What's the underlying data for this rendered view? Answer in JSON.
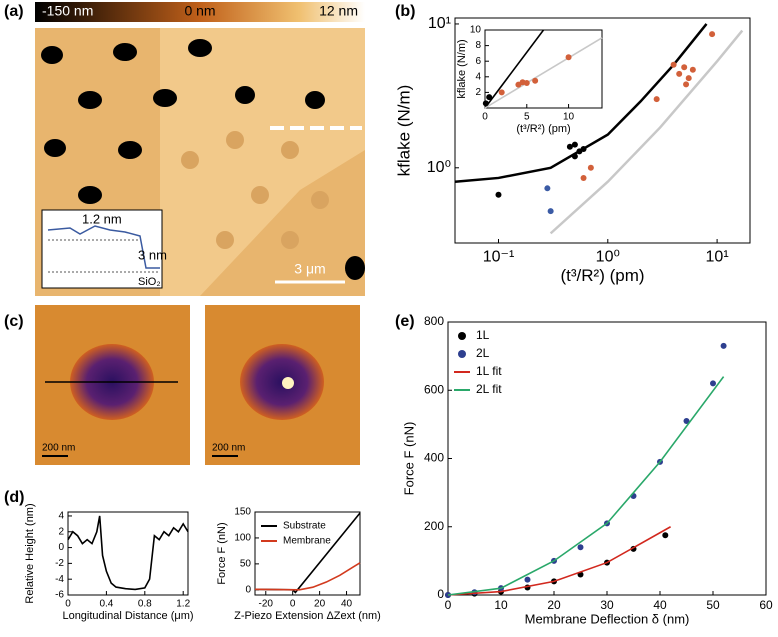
{
  "panel_labels": [
    "(a)",
    "(b)",
    "(c)",
    "(d)",
    "(e)"
  ],
  "image_a": {
    "colorbar_labels": [
      "-150 nm",
      "0 nm",
      "12 nm"
    ],
    "step_labels": [
      "1.2 nm",
      "3 nm",
      "SiO₂"
    ],
    "scale_bar": "3 μm"
  },
  "image_c": {
    "scale_bars": [
      "200 nm",
      "200 nm"
    ]
  },
  "chart_data": [
    {
      "type": "scatter",
      "xlabel": "(t³/R²) (pm)",
      "ylabel": "kflake (N/m)",
      "log_x": true,
      "log_y": true,
      "xlim": [
        0.04,
        20
      ],
      "ylim": [
        0.3,
        11
      ],
      "xticks": [
        {
          "value": 0.1,
          "label": "10⁻¹"
        },
        {
          "value": 1,
          "label": "10⁰"
        },
        {
          "value": 10,
          "label": "10¹"
        }
      ],
      "yticks": [
        {
          "value": 1,
          "label": "10⁰"
        },
        {
          "value": 10,
          "label": "10¹"
        }
      ],
      "series": [
        {
          "color": "#000000",
          "mode": "line",
          "x": [
            0.04,
            0.1,
            0.3,
            1,
            2,
            4,
            8
          ],
          "values": [
            0.8,
            0.85,
            1.0,
            1.7,
            2.9,
            5.2,
            10
          ]
        },
        {
          "color": "#c8c8c8",
          "mode": "line",
          "x": [
            0.3,
            1,
            3,
            10,
            17
          ],
          "values": [
            0.35,
            0.8,
            1.9,
            5.5,
            9
          ]
        },
        {
          "color": "#000000",
          "mode": "points",
          "x": [
            0.1,
            0.45,
            0.5,
            0.55,
            0.6,
            0.5
          ],
          "values": [
            0.65,
            1.4,
            1.45,
            1.3,
            1.35,
            1.2
          ]
        },
        {
          "color": "#3b5ba5",
          "mode": "points",
          "x": [
            0.28,
            0.3
          ],
          "values": [
            0.72,
            0.5
          ]
        },
        {
          "color": "#d2603a",
          "mode": "points",
          "x": [
            0.6,
            0.7,
            2.8,
            4,
            4.5,
            5,
            5.5,
            6,
            5.2,
            9
          ],
          "values": [
            0.85,
            1.0,
            3.0,
            5.2,
            4.5,
            5,
            4.2,
            4.8,
            3.8,
            8.5
          ]
        }
      ]
    },
    {
      "type": "scatter",
      "xlabel": "(t³/R²) (pm)",
      "ylabel": "kflake (N/m)",
      "xlim": [
        0,
        14
      ],
      "ylim": [
        0,
        10
      ],
      "xticks": [
        0,
        5,
        10
      ],
      "yticks": [
        2,
        4,
        6,
        8,
        10
      ],
      "series": [
        {
          "color": "#000000",
          "mode": "line",
          "x": [
            0,
            7
          ],
          "values": [
            0,
            10
          ]
        },
        {
          "color": "#c8c8c8",
          "mode": "line",
          "x": [
            0,
            14
          ],
          "values": [
            0,
            9
          ]
        },
        {
          "color": "#000000",
          "mode": "points",
          "x": [
            0.1,
            0.5
          ],
          "values": [
            0.6,
            1.4
          ]
        },
        {
          "color": "#d2603a",
          "mode": "points",
          "x": [
            2,
            4,
            4.5,
            5,
            6,
            10
          ],
          "values": [
            2,
            3,
            3.3,
            3.2,
            3.5,
            6.5
          ]
        }
      ]
    },
    {
      "type": "line",
      "xlabel": "Longitudinal Distance (μm)",
      "ylabel": "Relative Height (nm)",
      "xlim": [
        0,
        1.25
      ],
      "ylim": [
        -6,
        4.5
      ],
      "xticks": [
        0,
        0.4,
        0.8,
        1.2
      ],
      "yticks": [
        -6,
        -4,
        -2,
        0,
        2,
        4
      ],
      "series": [
        {
          "color": "#000000",
          "mode": "line",
          "x": [
            0,
            0.05,
            0.1,
            0.15,
            0.2,
            0.25,
            0.3,
            0.33,
            0.36,
            0.4,
            0.45,
            0.5,
            0.6,
            0.7,
            0.8,
            0.85,
            0.9,
            0.95,
            1.0,
            1.05,
            1.1,
            1.15,
            1.2,
            1.25
          ],
          "values": [
            1,
            2,
            1.5,
            0.5,
            1,
            0.5,
            2,
            4,
            -1,
            -3,
            -4.5,
            -5,
            -5.2,
            -5.3,
            -5.1,
            -4,
            1.5,
            1,
            2,
            1.5,
            2.5,
            2,
            3,
            2
          ]
        }
      ]
    },
    {
      "type": "line",
      "xlabel": "Z-Piezo Extension ΔZext (nm)",
      "ylabel": "Force F (nN)",
      "xlim": [
        -28,
        50
      ],
      "ylim": [
        -10,
        150
      ],
      "xticks": [
        -20,
        0,
        20,
        40
      ],
      "yticks": [
        0,
        50,
        100,
        150
      ],
      "legend": "top-left",
      "series": [
        {
          "name": "Substrate",
          "color": "#000000",
          "mode": "line",
          "x": [
            -28,
            0,
            2,
            50
          ],
          "values": [
            1,
            0,
            -5,
            148
          ]
        },
        {
          "name": "Membrane",
          "color": "#d23a1e",
          "mode": "line",
          "x": [
            -28,
            5,
            15,
            25,
            35,
            45,
            50
          ],
          "values": [
            1,
            0,
            5,
            15,
            28,
            44,
            52
          ]
        }
      ]
    },
    {
      "type": "line",
      "xlabel": "Membrane Deflection δ (nm)",
      "ylabel": "Force F (nN)",
      "xlim": [
        0,
        60
      ],
      "ylim": [
        0,
        800
      ],
      "xticks": [
        0,
        10,
        20,
        30,
        40,
        50,
        60
      ],
      "yticks": [
        0,
        200,
        400,
        600,
        800
      ],
      "legend": "top-left",
      "series": [
        {
          "name": "1L",
          "color": "#000000",
          "mode": "points",
          "x": [
            0,
            5,
            10,
            15,
            20,
            25,
            30,
            35,
            41
          ],
          "values": [
            0,
            4,
            10,
            22,
            40,
            60,
            95,
            135,
            175
          ]
        },
        {
          "name": "2L",
          "color": "#2e3f8f",
          "mode": "points",
          "x": [
            0,
            5,
            10,
            15,
            20,
            25,
            30,
            35,
            40,
            45,
            50,
            52
          ],
          "values": [
            0,
            8,
            20,
            45,
            100,
            140,
            210,
            290,
            390,
            510,
            620,
            730
          ]
        },
        {
          "name": "1L fit",
          "color": "#d2281e",
          "mode": "line",
          "x": [
            0,
            10,
            20,
            30,
            42
          ],
          "values": [
            0,
            10,
            40,
            95,
            200
          ]
        },
        {
          "name": "2L fit",
          "color": "#2aa86a",
          "mode": "line",
          "x": [
            0,
            10,
            20,
            30,
            40,
            52
          ],
          "values": [
            0,
            20,
            100,
            210,
            390,
            640
          ]
        }
      ]
    }
  ]
}
